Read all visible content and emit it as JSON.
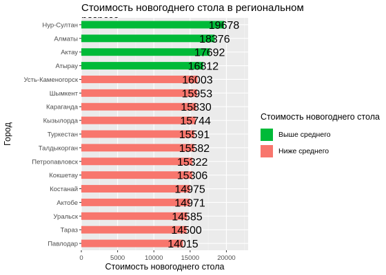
{
  "chart_data": {
    "type": "bar",
    "orientation": "horizontal",
    "title": "Стоимость новогоднего стола в региональном разрезе",
    "xlabel": "Стоимость новогоднего стола",
    "ylabel": "Город",
    "xlim": [
      0,
      23000
    ],
    "xticks": [
      0,
      5000,
      10000,
      15000,
      20000
    ],
    "grid": true,
    "legend": {
      "title": "Стоимость новогоднего стола",
      "position": "right",
      "entries": [
        {
          "label": "Выше среднего",
          "color": "#00BA38"
        },
        {
          "label": "Ниже среднего",
          "color": "#F8766D"
        }
      ]
    },
    "categories": [
      "Нур-Султан",
      "Алматы",
      "Актау",
      "Атырау",
      "Усть-Каменогорск",
      "Шымкент",
      "Караганда",
      "Кызылорда",
      "Туркестан",
      "Талдыкорган",
      "Петропавловск",
      "Кокшетау",
      "Костанай",
      "Актобе",
      "Уральск",
      "Тараз",
      "Павлодар"
    ],
    "values": [
      19678,
      18376,
      17692,
      16812,
      16003,
      15953,
      15830,
      15744,
      15591,
      15582,
      15322,
      15306,
      14975,
      14971,
      14585,
      14500,
      14015
    ],
    "group": [
      "Выше среднего",
      "Выше среднего",
      "Выше среднего",
      "Выше среднего",
      "Ниже среднего",
      "Ниже среднего",
      "Ниже среднего",
      "Ниже среднего",
      "Ниже среднего",
      "Ниже среднего",
      "Ниже среднего",
      "Ниже среднего",
      "Ниже среднего",
      "Ниже среднего",
      "Ниже среднего",
      "Ниже среднего",
      "Ниже среднего"
    ]
  }
}
